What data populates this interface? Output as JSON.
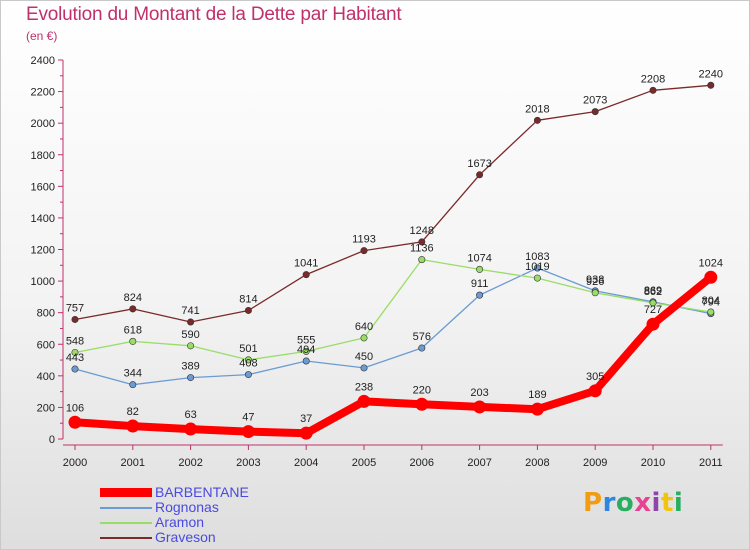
{
  "header": {
    "title": "Evolution du Montant de la Dette par Habitant",
    "subtitle": "(en €)"
  },
  "brand": {
    "logo_text": "Proxiti",
    "colors": [
      "#f39c12",
      "#2e86de",
      "#27ae60",
      "#e84393",
      "#8e44ad",
      "#f1c40f",
      "#27ae60"
    ]
  },
  "chart_data": {
    "type": "line",
    "title": "Evolution du Montant de la Dette par Habitant",
    "subtitle": "(en €)",
    "xlabel": "",
    "ylabel": "",
    "x": [
      "2000",
      "2001",
      "2002",
      "2003",
      "2004",
      "2005",
      "2006",
      "2007",
      "2008",
      "2009",
      "2010",
      "2011"
    ],
    "ylim": [
      0,
      2400
    ],
    "yticks": [
      0,
      200,
      400,
      600,
      800,
      1000,
      1200,
      1400,
      1600,
      1800,
      2000,
      2200,
      2400
    ],
    "grid": false,
    "legend_position": "bottom-left",
    "series": [
      {
        "name": "BARBENTANE",
        "color": "#ff0000",
        "emphasis": true,
        "values": [
          106,
          82,
          63,
          47,
          37,
          238,
          220,
          203,
          189,
          305,
          727,
          1024
        ]
      },
      {
        "name": "Rognonas",
        "color": "#6b9bd2",
        "values": [
          443,
          344,
          389,
          408,
          494,
          450,
          576,
          911,
          1083,
          938,
          869,
          794
        ]
      },
      {
        "name": "Aramon",
        "color": "#99dd66",
        "values": [
          548,
          618,
          590,
          501,
          555,
          640,
          1136,
          1074,
          1019,
          926,
          862,
          804
        ]
      },
      {
        "name": "Graveson",
        "color": "#7a2a2a",
        "values": [
          757,
          824,
          741,
          814,
          1041,
          1193,
          1248,
          1673,
          2018,
          2073,
          2208,
          2240
        ]
      }
    ]
  }
}
